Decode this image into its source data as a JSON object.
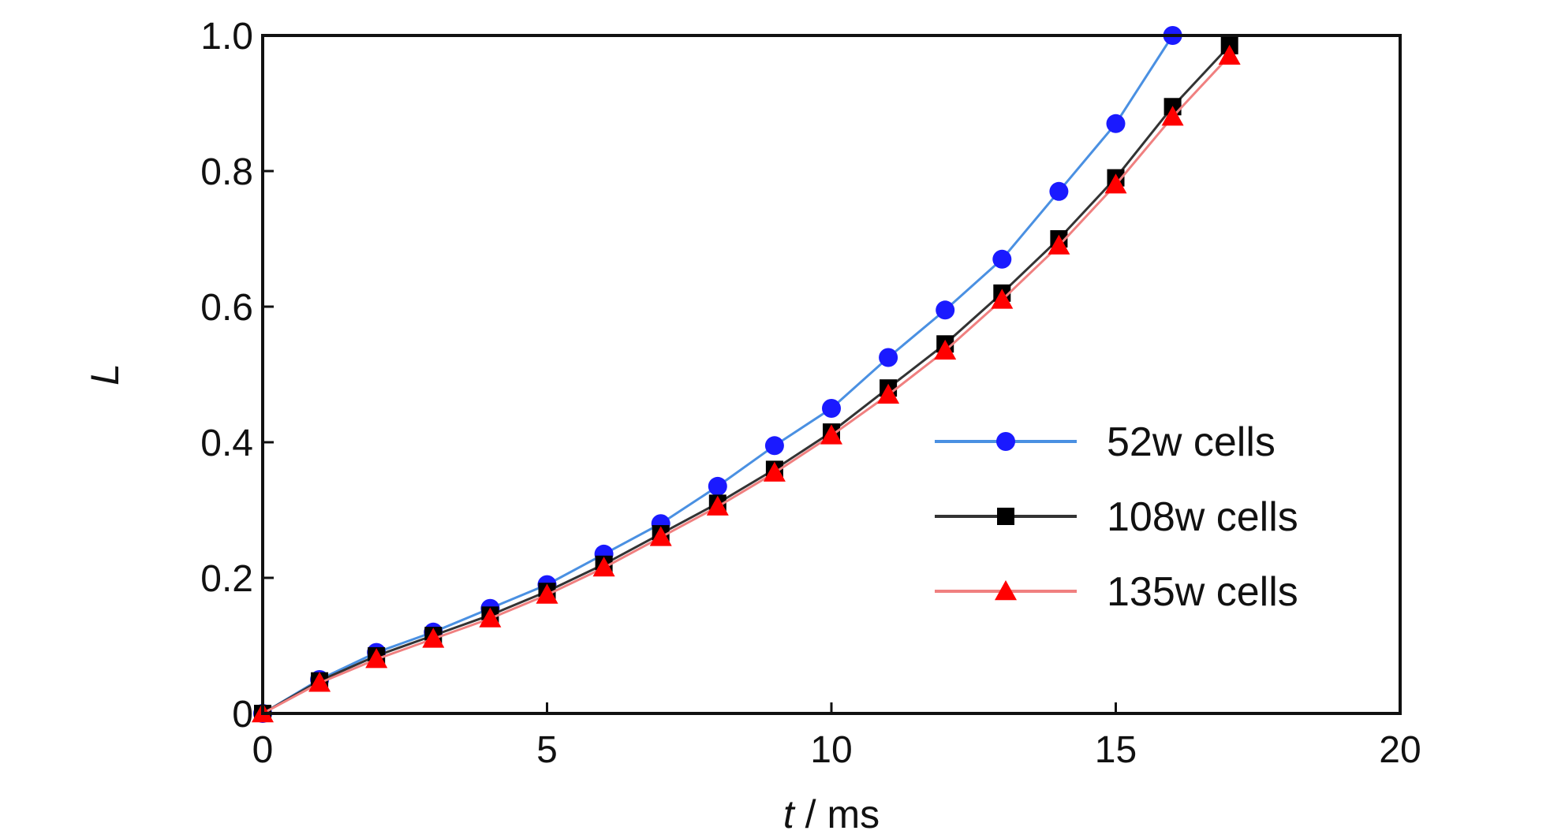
{
  "chart_data": {
    "type": "line",
    "xlabel_var": "t",
    "xlabel_unit": " / ms",
    "ylabel": "L",
    "xlim": [
      0,
      20
    ],
    "ylim": [
      0,
      1.0
    ],
    "x_ticks": [
      "0",
      "5",
      "10",
      "15",
      "20"
    ],
    "x_tick_values": [
      0,
      5,
      10,
      15,
      20
    ],
    "y_ticks": [
      "0",
      "0.2",
      "0.4",
      "0.6",
      "0.8",
      "1.0"
    ],
    "y_tick_values": [
      0,
      0.2,
      0.4,
      0.6,
      0.8,
      1.0
    ],
    "grid": false,
    "legend_position": "lower-right",
    "series": [
      {
        "name": "52w cells",
        "color": "#1a1aff",
        "line_color": "#4a90e2",
        "marker": "circle",
        "x": [
          0,
          1,
          2,
          3,
          4,
          5,
          6,
          7,
          8,
          9,
          10,
          11,
          12,
          13,
          14,
          15,
          16
        ],
        "y": [
          0,
          0.05,
          0.09,
          0.12,
          0.155,
          0.19,
          0.235,
          0.28,
          0.335,
          0.395,
          0.45,
          0.525,
          0.595,
          0.67,
          0.77,
          0.87,
          1.0
        ]
      },
      {
        "name": "108w cells",
        "color": "#000000",
        "line_color": "#333333",
        "marker": "square",
        "x": [
          0,
          1,
          2,
          3,
          4,
          5,
          6,
          7,
          8,
          9,
          10,
          11,
          12,
          13,
          14,
          15,
          16,
          17
        ],
        "y": [
          0,
          0.048,
          0.085,
          0.115,
          0.145,
          0.18,
          0.22,
          0.265,
          0.31,
          0.36,
          0.415,
          0.48,
          0.545,
          0.62,
          0.7,
          0.79,
          0.895,
          0.985
        ]
      },
      {
        "name": "135w cells",
        "color": "#ff0000",
        "line_color": "#f08080",
        "marker": "triangle",
        "x": [
          0,
          1,
          2,
          3,
          4,
          5,
          6,
          7,
          8,
          9,
          10,
          11,
          12,
          13,
          14,
          15,
          16,
          17
        ],
        "y": [
          0,
          0.045,
          0.08,
          0.11,
          0.14,
          0.175,
          0.215,
          0.26,
          0.305,
          0.355,
          0.41,
          0.47,
          0.535,
          0.61,
          0.69,
          0.78,
          0.88,
          0.97
        ]
      }
    ]
  }
}
